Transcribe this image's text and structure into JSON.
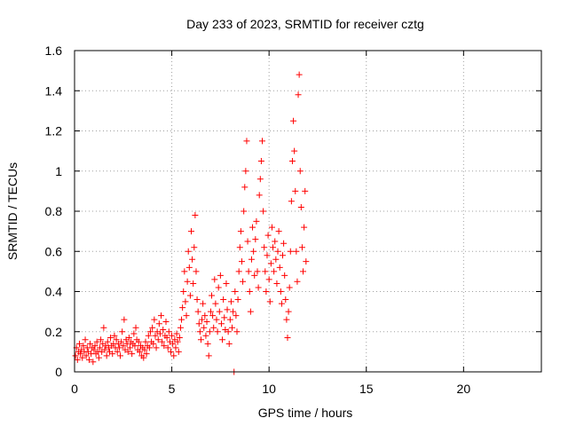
{
  "chart_data": {
    "type": "scatter",
    "title": "Day 233 of 2023, SRMTID for receiver cztg",
    "xlabel": "GPS time / hours",
    "ylabel": "SRMTID / TECUs",
    "xlim": [
      0,
      24
    ],
    "ylim": [
      0,
      1.6
    ],
    "xticks": [
      0,
      5,
      10,
      15,
      20
    ],
    "xtick_labels": [
      "0",
      "5",
      "10",
      "15",
      "20"
    ],
    "yticks": [
      0,
      0.2,
      0.4,
      0.6,
      0.8,
      1.0,
      1.2,
      1.4,
      1.6
    ],
    "ytick_labels": [
      "0",
      "0.2",
      "0.4",
      "0.6",
      "0.8",
      "1",
      "1.2",
      "1.4",
      "1.6"
    ],
    "grid": true,
    "marker": "plus",
    "series": [
      {
        "name": "SRMTID",
        "color": "#ff0000",
        "points": [
          [
            0.05,
            0.08
          ],
          [
            0.1,
            0.12
          ],
          [
            0.15,
            0.06
          ],
          [
            0.2,
            0.1
          ],
          [
            0.25,
            0.14
          ],
          [
            0.3,
            0.09
          ],
          [
            0.35,
            0.11
          ],
          [
            0.4,
            0.07
          ],
          [
            0.45,
            0.13
          ],
          [
            0.5,
            0.1
          ],
          [
            0.55,
            0.16
          ],
          [
            0.6,
            0.08
          ],
          [
            0.65,
            0.12
          ],
          [
            0.7,
            0.1
          ],
          [
            0.75,
            0.06
          ],
          [
            0.8,
            0.14
          ],
          [
            0.85,
            0.09
          ],
          [
            0.9,
            0.12
          ],
          [
            0.95,
            0.05
          ],
          [
            1.0,
            0.11
          ],
          [
            1.05,
            0.13
          ],
          [
            1.1,
            0.09
          ],
          [
            1.15,
            0.15
          ],
          [
            1.2,
            0.1
          ],
          [
            1.25,
            0.07
          ],
          [
            1.3,
            0.12
          ],
          [
            1.35,
            0.16
          ],
          [
            1.4,
            0.1
          ],
          [
            1.45,
            0.14
          ],
          [
            1.5,
            0.22
          ],
          [
            1.55,
            0.11
          ],
          [
            1.6,
            0.13
          ],
          [
            1.65,
            0.08
          ],
          [
            1.7,
            0.15
          ],
          [
            1.75,
            0.12
          ],
          [
            1.8,
            0.1
          ],
          [
            1.85,
            0.17
          ],
          [
            1.9,
            0.13
          ],
          [
            1.95,
            0.09
          ],
          [
            2.0,
            0.14
          ],
          [
            2.05,
            0.18
          ],
          [
            2.1,
            0.12
          ],
          [
            2.15,
            0.16
          ],
          [
            2.2,
            0.1
          ],
          [
            2.25,
            0.14
          ],
          [
            2.3,
            0.12
          ],
          [
            2.35,
            0.08
          ],
          [
            2.4,
            0.15
          ],
          [
            2.45,
            0.2
          ],
          [
            2.5,
            0.13
          ],
          [
            2.55,
            0.26
          ],
          [
            2.6,
            0.11
          ],
          [
            2.65,
            0.16
          ],
          [
            2.7,
            0.14
          ],
          [
            2.75,
            0.1
          ],
          [
            2.8,
            0.17
          ],
          [
            2.85,
            0.12
          ],
          [
            2.9,
            0.15
          ],
          [
            2.95,
            0.09
          ],
          [
            3.0,
            0.14
          ],
          [
            3.05,
            0.19
          ],
          [
            3.1,
            0.13
          ],
          [
            3.15,
            0.22
          ],
          [
            3.2,
            0.16
          ],
          [
            3.25,
            0.11
          ],
          [
            3.3,
            0.15
          ],
          [
            3.35,
            0.1
          ],
          [
            3.4,
            0.13
          ],
          [
            3.45,
            0.08
          ],
          [
            3.5,
            0.12
          ],
          [
            3.55,
            0.07
          ],
          [
            3.6,
            0.11
          ],
          [
            3.65,
            0.15
          ],
          [
            3.7,
            0.09
          ],
          [
            3.75,
            0.13
          ],
          [
            3.8,
            0.18
          ],
          [
            3.85,
            0.12
          ],
          [
            3.9,
            0.2
          ],
          [
            3.95,
            0.15
          ],
          [
            4.0,
            0.22
          ],
          [
            4.05,
            0.14
          ],
          [
            4.1,
            0.26
          ],
          [
            4.15,
            0.18
          ],
          [
            4.2,
            0.12
          ],
          [
            4.25,
            0.2
          ],
          [
            4.3,
            0.16
          ],
          [
            4.35,
            0.24
          ],
          [
            4.4,
            0.19
          ],
          [
            4.45,
            0.28
          ],
          [
            4.5,
            0.15
          ],
          [
            4.55,
            0.21
          ],
          [
            4.6,
            0.13
          ],
          [
            4.65,
            0.18
          ],
          [
            4.7,
            0.25
          ],
          [
            4.75,
            0.17
          ],
          [
            4.8,
            0.12
          ],
          [
            4.85,
            0.2
          ],
          [
            4.9,
            0.15
          ],
          [
            4.95,
            0.1
          ],
          [
            5.0,
            0.18
          ],
          [
            5.05,
            0.14
          ],
          [
            5.1,
            0.08
          ],
          [
            5.15,
            0.16
          ],
          [
            5.2,
            0.12
          ],
          [
            5.25,
            0.19
          ],
          [
            5.3,
            0.15
          ],
          [
            5.35,
            0.1
          ],
          [
            5.4,
            0.17
          ],
          [
            5.45,
            0.22
          ],
          [
            5.5,
            0.26
          ],
          [
            5.55,
            0.32
          ],
          [
            5.6,
            0.4
          ],
          [
            5.65,
            0.5
          ],
          [
            5.7,
            0.35
          ],
          [
            5.75,
            0.28
          ],
          [
            5.8,
            0.45
          ],
          [
            5.85,
            0.6
          ],
          [
            5.9,
            0.52
          ],
          [
            5.95,
            0.38
          ],
          [
            6.0,
            0.7
          ],
          [
            6.05,
            0.56
          ],
          [
            6.1,
            0.44
          ],
          [
            6.15,
            0.62
          ],
          [
            6.2,
            0.78
          ],
          [
            6.25,
            0.5
          ],
          [
            6.3,
            0.36
          ],
          [
            6.35,
            0.3
          ],
          [
            6.4,
            0.24
          ],
          [
            6.45,
            0.2
          ],
          [
            6.5,
            0.16
          ],
          [
            6.55,
            0.26
          ],
          [
            6.6,
            0.34
          ],
          [
            6.65,
            0.22
          ],
          [
            6.7,
            0.28
          ],
          [
            6.75,
            0.18
          ],
          [
            6.8,
            0.25
          ],
          [
            6.85,
            0.14
          ],
          [
            6.9,
            0.08
          ],
          [
            6.95,
            0.2
          ],
          [
            7.0,
            0.3
          ],
          [
            7.05,
            0.38
          ],
          [
            7.1,
            0.28
          ],
          [
            7.15,
            0.22
          ],
          [
            7.2,
            0.46
          ],
          [
            7.25,
            0.34
          ],
          [
            7.3,
            0.26
          ],
          [
            7.35,
            0.2
          ],
          [
            7.4,
            0.42
          ],
          [
            7.45,
            0.3
          ],
          [
            7.5,
            0.48
          ],
          [
            7.55,
            0.24
          ],
          [
            7.6,
            0.16
          ],
          [
            7.65,
            0.36
          ],
          [
            7.7,
            0.27
          ],
          [
            7.75,
            0.21
          ],
          [
            7.8,
            0.44
          ],
          [
            7.85,
            0.31
          ],
          [
            7.9,
            0.2
          ],
          [
            7.95,
            0.14
          ],
          [
            8.0,
            0.26
          ],
          [
            8.05,
            0.35
          ],
          [
            8.1,
            0.22
          ],
          [
            8.15,
            0.3
          ],
          [
            8.2,
            0.0
          ],
          [
            8.25,
            0.4
          ],
          [
            8.3,
            0.28
          ],
          [
            8.35,
            0.2
          ],
          [
            8.4,
            0.36
          ],
          [
            8.45,
            0.5
          ],
          [
            8.5,
            0.62
          ],
          [
            8.55,
            0.7
          ],
          [
            8.6,
            0.55
          ],
          [
            8.65,
            0.45
          ],
          [
            8.7,
            0.8
          ],
          [
            8.75,
            0.92
          ],
          [
            8.8,
            1.0
          ],
          [
            8.85,
            1.15
          ],
          [
            8.9,
            0.65
          ],
          [
            8.95,
            0.5
          ],
          [
            9.0,
            0.4
          ],
          [
            9.05,
            0.3
          ],
          [
            9.1,
            0.56
          ],
          [
            9.15,
            0.72
          ],
          [
            9.2,
            0.6
          ],
          [
            9.25,
            0.48
          ],
          [
            9.3,
            0.66
          ],
          [
            9.35,
            0.75
          ],
          [
            9.4,
            0.5
          ],
          [
            9.45,
            0.42
          ],
          [
            9.5,
            0.88
          ],
          [
            9.55,
            0.96
          ],
          [
            9.6,
            1.05
          ],
          [
            9.65,
            1.15
          ],
          [
            9.7,
            0.8
          ],
          [
            9.75,
            0.62
          ],
          [
            9.8,
            0.5
          ],
          [
            9.85,
            0.4
          ],
          [
            9.9,
            0.58
          ],
          [
            9.95,
            0.68
          ],
          [
            10.0,
            0.46
          ],
          [
            10.05,
            0.35
          ],
          [
            10.1,
            0.54
          ],
          [
            10.15,
            0.72
          ],
          [
            10.2,
            0.62
          ],
          [
            10.25,
            0.5
          ],
          [
            10.3,
            0.65
          ],
          [
            10.35,
            0.56
          ],
          [
            10.4,
            0.44
          ],
          [
            10.45,
            0.6
          ],
          [
            10.5,
            0.7
          ],
          [
            10.55,
            0.52
          ],
          [
            10.6,
            0.4
          ],
          [
            10.65,
            0.34
          ],
          [
            10.7,
            0.58
          ],
          [
            10.75,
            0.64
          ],
          [
            10.8,
            0.48
          ],
          [
            10.85,
            0.36
          ],
          [
            10.9,
            0.26
          ],
          [
            10.95,
            0.17
          ],
          [
            11.0,
            0.3
          ],
          [
            11.05,
            0.42
          ],
          [
            11.1,
            0.6
          ],
          [
            11.15,
            0.85
          ],
          [
            11.2,
            1.05
          ],
          [
            11.25,
            1.25
          ],
          [
            11.3,
            1.1
          ],
          [
            11.35,
            0.9
          ],
          [
            11.4,
            0.6
          ],
          [
            11.45,
            0.45
          ],
          [
            11.5,
            1.38
          ],
          [
            11.55,
            1.48
          ],
          [
            11.6,
            1.0
          ],
          [
            11.65,
            0.82
          ],
          [
            11.7,
            0.62
          ],
          [
            11.75,
            0.5
          ],
          [
            11.8,
            0.72
          ],
          [
            11.85,
            0.9
          ],
          [
            11.9,
            0.55
          ]
        ]
      }
    ]
  }
}
